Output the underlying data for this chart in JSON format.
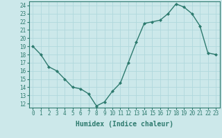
{
  "x": [
    0,
    1,
    2,
    3,
    4,
    5,
    6,
    7,
    8,
    9,
    10,
    11,
    12,
    13,
    14,
    15,
    16,
    17,
    18,
    19,
    20,
    21,
    22,
    23
  ],
  "y": [
    19,
    18,
    16.5,
    16,
    15,
    14,
    13.8,
    13.2,
    11.7,
    12.2,
    13.5,
    14.5,
    17,
    19.5,
    21.8,
    22,
    22.2,
    23,
    24.2,
    23.8,
    23,
    21.5,
    18.2,
    18
  ],
  "line_color": "#2d7a6e",
  "marker": "D",
  "marker_size": 2,
  "bg_color": "#cce8ea",
  "grid_color": "#b0d8dc",
  "xlabel": "Humidex (Indice chaleur)",
  "ylim": [
    11.5,
    24.5
  ],
  "xlim": [
    -0.5,
    23.5
  ],
  "yticks": [
    12,
    13,
    14,
    15,
    16,
    17,
    18,
    19,
    20,
    21,
    22,
    23,
    24
  ],
  "xticks": [
    0,
    1,
    2,
    3,
    4,
    5,
    6,
    7,
    8,
    9,
    10,
    11,
    12,
    13,
    14,
    15,
    16,
    17,
    18,
    19,
    20,
    21,
    22,
    23
  ],
  "tick_fontsize": 5.5,
  "xlabel_fontsize": 7,
  "linewidth": 1.0
}
